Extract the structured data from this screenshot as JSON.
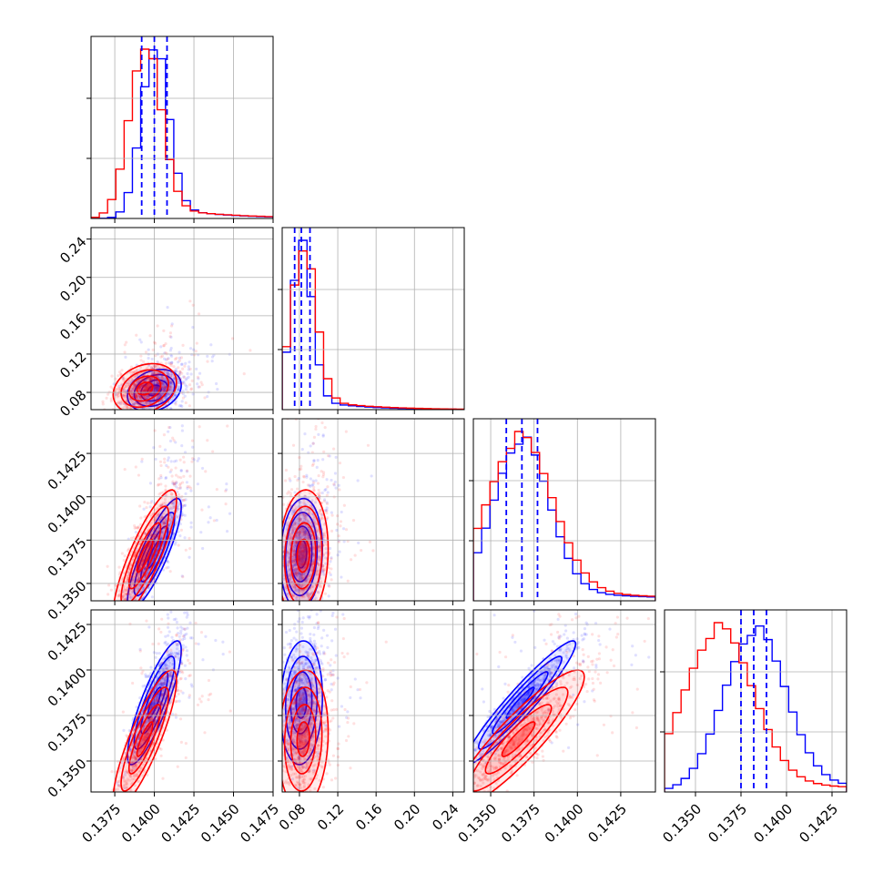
{
  "chart_data": {
    "type": "corner",
    "grid": true,
    "parameters": [
      {
        "ticks": [
          "0.1375",
          "0.1400",
          "0.1425",
          "0.1450",
          "0.1475"
        ],
        "tick_values": [
          0.1375,
          0.14,
          0.1425,
          0.145,
          0.1475
        ],
        "range": [
          0.136,
          0.1475
        ]
      },
      {
        "ticks": [
          "0.08",
          "0.12",
          "0.16",
          "0.20",
          "0.24"
        ],
        "tick_values": [
          0.08,
          0.12,
          0.16,
          0.2,
          0.24
        ],
        "range": [
          0.062,
          0.252
        ]
      },
      {
        "ticks": [
          "0.1350",
          "0.1375",
          "0.1400",
          "0.1425"
        ],
        "tick_values": [
          0.135,
          0.1375,
          0.14,
          0.1425
        ],
        "range": [
          0.134,
          0.1445
        ]
      },
      {
        "ticks": [
          "0.1350",
          "0.1375",
          "0.1400",
          "0.1425"
        ],
        "tick_values": [
          0.135,
          0.1375,
          0.14,
          0.1425
        ],
        "range": [
          0.1333,
          0.1433
        ]
      }
    ],
    "series": [
      {
        "color": "#0000ff",
        "means": [
          0.14,
          0.082,
          0.1367,
          0.1382
        ],
        "stds": [
          0.00085,
          0.011,
          0.0016,
          0.0017
        ],
        "quantile_lines": [
          [
            0.1392,
            0.14,
            0.1408
          ],
          [
            0.075,
            0.082,
            0.091
          ],
          [
            0.1359,
            0.1368,
            0.1377
          ],
          [
            0.1375,
            0.1382,
            0.1389
          ]
        ],
        "correlations": [
          [
            1,
            0.25,
            0.85,
            0.85
          ],
          [
            0.25,
            1,
            0.1,
            0.1
          ],
          [
            0.85,
            0.1,
            1,
            0.95
          ],
          [
            0.85,
            0.1,
            0.95,
            1
          ]
        ]
      },
      {
        "color": "#ff0000",
        "means": [
          0.1394,
          0.084,
          0.1366,
          0.1362
        ],
        "stds": [
          0.001,
          0.013,
          0.0019,
          0.0019
        ],
        "correlations": [
          [
            1,
            0.25,
            0.85,
            0.85
          ],
          [
            0.25,
            1,
            0.1,
            0.1
          ],
          [
            0.85,
            0.1,
            1,
            0.9
          ],
          [
            0.85,
            0.1,
            0.9,
            1
          ]
        ]
      }
    ]
  }
}
